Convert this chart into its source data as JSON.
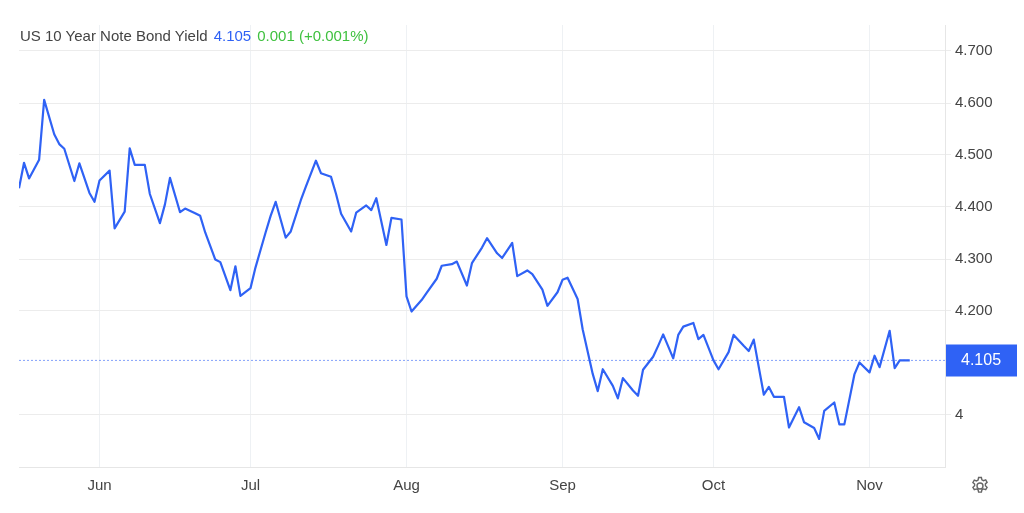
{
  "chart_data": {
    "type": "line",
    "title": "US 10 Year Note Bond Yield",
    "annotations": [
      "4.105",
      "0.001 (+0.001%)"
    ],
    "x": [
      "--05-16",
      "--05-17",
      "--05-18",
      "--05-20",
      "--05-21",
      "--05-23",
      "--05-24",
      "--05-25",
      "--05-27",
      "--05-28",
      "--05-30",
      "--05-31",
      "--06-01",
      "--06-03",
      "--06-04",
      "--06-06",
      "--06-07",
      "--06-08",
      "--06-10",
      "--06-11",
      "--06-13",
      "--06-14",
      "--06-15",
      "--06-17",
      "--06-18",
      "--06-20",
      "--06-21",
      "--06-22",
      "--06-24",
      "--06-25",
      "--06-27",
      "--06-28",
      "--06-29",
      "--07-01",
      "--07-02",
      "--07-04",
      "--07-05",
      "--07-06",
      "--07-08",
      "--07-09",
      "--07-11",
      "--07-12",
      "--07-14",
      "--07-15",
      "--07-17",
      "--07-18",
      "--07-19",
      "--07-21",
      "--07-22",
      "--07-24",
      "--07-25",
      "--07-26",
      "--07-28",
      "--07-29",
      "--07-31",
      "--08-01",
      "--08-02",
      "--08-04",
      "--08-05",
      "--08-07",
      "--08-08",
      "--08-10",
      "--08-11",
      "--08-13",
      "--08-14",
      "--08-16",
      "--08-17",
      "--08-19",
      "--08-20",
      "--08-22",
      "--08-23",
      "--08-25",
      "--08-26",
      "--08-28",
      "--08-29",
      "--08-31",
      "--09-01",
      "--09-02",
      "--09-04",
      "--09-05",
      "--09-07",
      "--09-08",
      "--09-09",
      "--09-11",
      "--09-12",
      "--09-13",
      "--09-15",
      "--09-16",
      "--09-17",
      "--09-19",
      "--09-20",
      "--09-21",
      "--09-23",
      "--09-24",
      "--09-25",
      "--09-27",
      "--09-28",
      "--09-29",
      "--10-01",
      "--10-02",
      "--10-04",
      "--10-05",
      "--10-07",
      "--10-08",
      "--10-09",
      "--10-11",
      "--10-12",
      "--10-13",
      "--10-15",
      "--10-16",
      "--10-18",
      "--10-19",
      "--10-21",
      "--10-22",
      "--10-23",
      "--10-25",
      "--10-26",
      "--10-27",
      "--10-29",
      "--10-30",
      "--11-01",
      "--11-02",
      "--11-03",
      "--11-05",
      "--11-06",
      "--11-07",
      "--11-09"
    ],
    "series": [
      {
        "color": "#2f62f5",
        "values": [
          4.436,
          4.485,
          4.455,
          4.491,
          4.606,
          4.54,
          4.521,
          4.512,
          4.45,
          4.484,
          4.427,
          4.41,
          4.451,
          4.47,
          4.359,
          4.391,
          4.513,
          4.481,
          4.481,
          4.425,
          4.369,
          4.405,
          4.456,
          4.39,
          4.397,
          4.388,
          4.383,
          4.351,
          4.299,
          4.294,
          4.24,
          4.286,
          4.229,
          4.244,
          4.284,
          4.351,
          4.383,
          4.41,
          4.341,
          4.353,
          4.413,
          4.439,
          4.489,
          4.465,
          4.458,
          4.425,
          4.387,
          4.353,
          4.389,
          4.403,
          4.394,
          4.417,
          4.327,
          4.379,
          4.376,
          4.228,
          4.199,
          4.221,
          4.235,
          4.262,
          4.287,
          4.29,
          4.295,
          4.249,
          4.292,
          4.322,
          4.34,
          4.311,
          4.302,
          4.331,
          4.267,
          4.278,
          4.271,
          4.241,
          4.21,
          4.236,
          4.26,
          4.264,
          4.223,
          4.165,
          4.079,
          4.046,
          4.088,
          4.056,
          4.032,
          4.071,
          4.047,
          4.037,
          4.087,
          4.112,
          4.133,
          4.155,
          4.109,
          4.154,
          4.17,
          4.177,
          4.146,
          4.154,
          4.105,
          4.088,
          4.121,
          4.154,
          4.133,
          4.123,
          4.145,
          4.039,
          4.054,
          4.035,
          4.035,
          3.976,
          4.015,
          3.986,
          3.975,
          3.954,
          4.008,
          4.024,
          3.982,
          3.982,
          4.078,
          4.101,
          4.082,
          4.114,
          4.092,
          4.162,
          4.09,
          4.105,
          4.105
        ]
      }
    ],
    "xlim": [
      "--05-16",
      "--11-16"
    ],
    "xticks": [
      {
        "value": "--06-01",
        "label": "Jun"
      },
      {
        "value": "--07-01",
        "label": "Jul"
      },
      {
        "value": "--08-01",
        "label": "Aug"
      },
      {
        "value": "--09-01",
        "label": "Sep"
      },
      {
        "value": "--10-01",
        "label": "Oct"
      },
      {
        "value": "--11-01",
        "label": "Nov"
      }
    ],
    "ylim": [
      3.9,
      4.75
    ],
    "yticks": [
      4,
      {
        "value": 4.2,
        "label": "4.200"
      },
      {
        "value": 4.3,
        "label": "4.300"
      },
      {
        "value": 4.4,
        "label": "4.400"
      },
      {
        "value": 4.5,
        "label": "4.500"
      },
      {
        "value": 4.6,
        "label": "4.600"
      },
      {
        "value": 4.7,
        "label": "4.700"
      }
    ],
    "ref_lines": [
      {
        "axis": "y",
        "value": 4.105,
        "label": "4.105",
        "color": "#2f62f5",
        "line_style": "dotted"
      }
    ],
    "grid": true,
    "legend": false,
    "marker": "none",
    "line_style": "solid"
  }
}
